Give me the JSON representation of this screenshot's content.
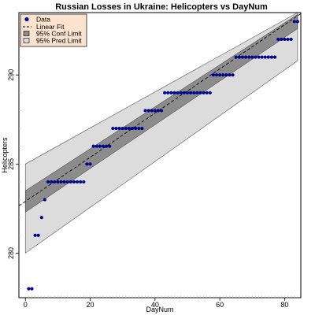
{
  "chart_data": {
    "type": "scatter",
    "title": "Russian Losses in Ukraine: Helicopters vs DayNum",
    "xlabel": "DayNum",
    "ylabel": "Helicopters",
    "xlim": [
      -2,
      85
    ],
    "ylim": [
      277.5,
      293.5
    ],
    "xticks": [
      0,
      20,
      40,
      60,
      80
    ],
    "yticks": [
      280,
      285,
      290
    ],
    "legend_position": "top-left",
    "colors": {
      "data": "#00008b",
      "fit_line": "#000000",
      "conf_band": "#8c8c8c",
      "pred_band": "#dcdcdc",
      "legend_bg": "#fbe3cf"
    },
    "legend": [
      "Data",
      "Linear Fit",
      "95% Conf Limit",
      "95% Pred Limit"
    ],
    "fit": {
      "intercept": 282.9,
      "slope": 0.124
    },
    "conf_band": {
      "lower_at_0": 282.3,
      "upper_at_0": 283.5,
      "lower_at_84": 292.6,
      "upper_at_84": 293.4
    },
    "pred_band": {
      "lower_at_0": 280.0,
      "upper_at_0": 285.0,
      "lower_at_84": 290.8,
      "upper_at_84": 294.8
    },
    "series": [
      {
        "name": "Data",
        "x": [
          1,
          2,
          3,
          4,
          5,
          6,
          7,
          8,
          9,
          10,
          11,
          12,
          13,
          14,
          15,
          16,
          17,
          18,
          19,
          20,
          21,
          22,
          23,
          24,
          25,
          26,
          27,
          28,
          29,
          30,
          31,
          32,
          33,
          34,
          35,
          36,
          37,
          38,
          39,
          40,
          41,
          42,
          43,
          44,
          45,
          46,
          47,
          48,
          49,
          50,
          51,
          52,
          53,
          54,
          55,
          56,
          57,
          58,
          59,
          60,
          61,
          62,
          63,
          64,
          65,
          66,
          67,
          68,
          69,
          70,
          71,
          72,
          73,
          74,
          75,
          76,
          77,
          78,
          79,
          80,
          81,
          82,
          83,
          84
        ],
        "y": [
          278,
          278,
          281,
          281,
          282,
          283,
          284,
          284,
          284,
          284,
          284,
          284,
          284,
          284,
          284,
          284,
          284,
          284,
          285,
          285,
          286,
          286,
          286,
          286,
          286,
          286,
          287,
          287,
          287,
          287,
          287,
          287,
          287,
          287,
          287,
          287,
          288,
          288,
          288,
          288,
          288,
          288,
          289,
          289,
          289,
          289,
          289,
          289,
          289,
          289,
          289,
          289,
          289,
          289,
          289,
          289,
          289,
          290,
          290,
          290,
          290,
          290,
          290,
          290,
          291,
          291,
          291,
          291,
          291,
          291,
          291,
          291,
          291,
          291,
          291,
          291,
          291,
          292,
          292,
          292,
          292,
          292,
          293,
          293
        ]
      }
    ]
  }
}
